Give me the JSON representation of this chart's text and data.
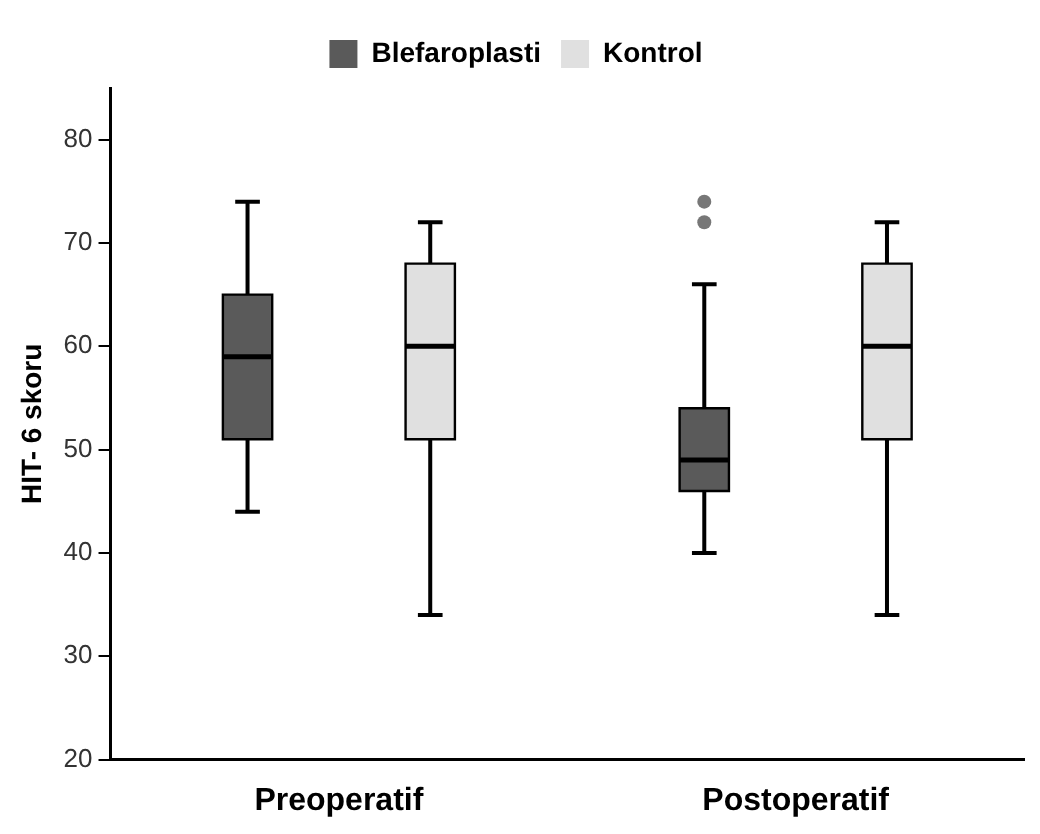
{
  "chart_data": {
    "type": "box",
    "ylabel": "HIT- 6 skoru",
    "categories": [
      "Preoperatif",
      "Postoperatif"
    ],
    "ylim": [
      20,
      85
    ],
    "yticks": [
      20,
      30,
      40,
      50,
      60,
      70,
      80
    ],
    "legend": "top",
    "grid": false,
    "series": [
      {
        "name": "Blefaroplasti",
        "color": "#5a5a5a",
        "boxes": [
          {
            "low": 44,
            "q1": 51,
            "median": 59,
            "q3": 65,
            "high": 74
          },
          {
            "low": 40,
            "q1": 46,
            "median": 49,
            "q3": 54,
            "high": 66,
            "outliers": [
              74,
              72
            ]
          }
        ]
      },
      {
        "name": "Kontrol",
        "color": "#e0e0e0",
        "boxes": [
          {
            "low": 34,
            "q1": 51,
            "median": 60,
            "q3": 68,
            "high": 72
          },
          {
            "low": 34,
            "q1": 51,
            "median": 60,
            "q3": 68,
            "high": 72
          }
        ]
      }
    ]
  }
}
